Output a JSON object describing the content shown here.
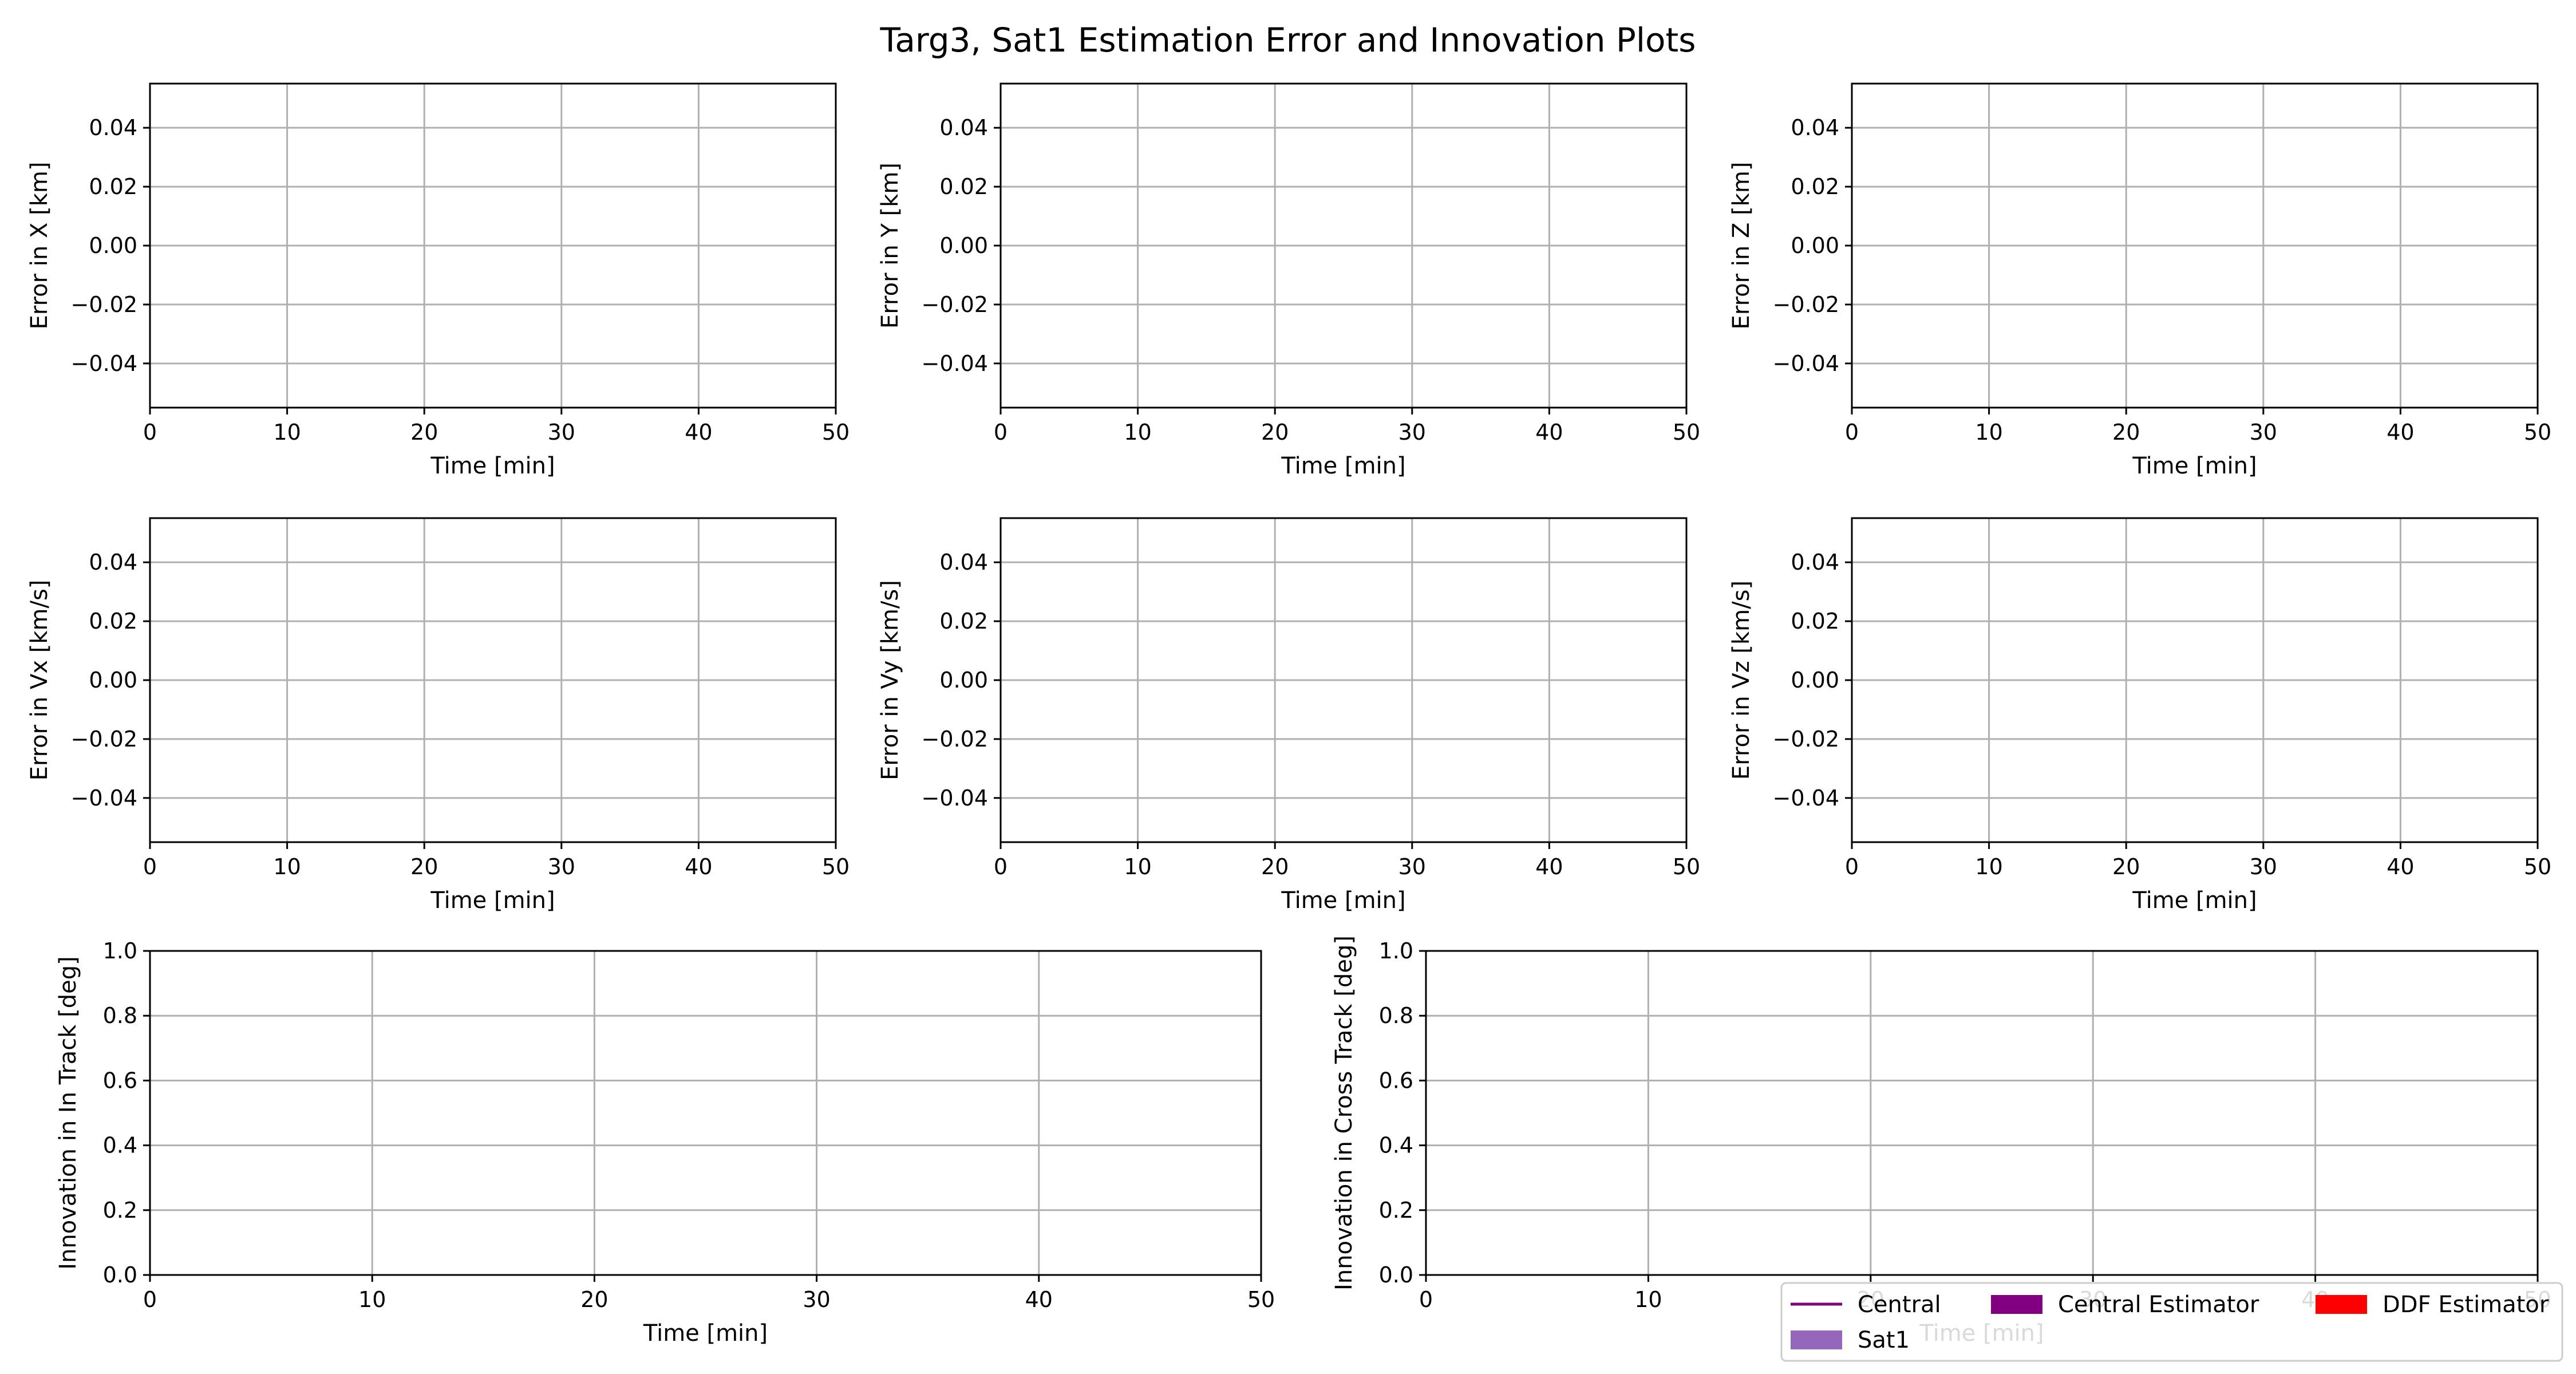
{
  "chart_data": {
    "title": "Targ3, Sat1 Estimation Error and Innovation Plots",
    "subplots": [
      {
        "type": "line",
        "xlabel": "Time [min]",
        "ylabel": "Error in X [km]",
        "xlim": [
          0,
          50
        ],
        "ylim": [
          -0.055,
          0.055
        ],
        "xticks": [
          0,
          10,
          20,
          30,
          40,
          50
        ],
        "xtick_labels": [
          "0",
          "10",
          "20",
          "30",
          "40",
          "50"
        ],
        "yticks": [
          -0.04,
          -0.02,
          0,
          0.02,
          0.04
        ],
        "ytick_labels": [
          "−0.04",
          "−0.02",
          "0.00",
          "0.02",
          "0.04"
        ],
        "grid": true,
        "series": []
      },
      {
        "type": "line",
        "xlabel": "Time [min]",
        "ylabel": "Error in Y [km]",
        "xlim": [
          0,
          50
        ],
        "ylim": [
          -0.055,
          0.055
        ],
        "xticks": [
          0,
          10,
          20,
          30,
          40,
          50
        ],
        "xtick_labels": [
          "0",
          "10",
          "20",
          "30",
          "40",
          "50"
        ],
        "yticks": [
          -0.04,
          -0.02,
          0,
          0.02,
          0.04
        ],
        "ytick_labels": [
          "−0.04",
          "−0.02",
          "0.00",
          "0.02",
          "0.04"
        ],
        "grid": true,
        "series": []
      },
      {
        "type": "line",
        "xlabel": "Time [min]",
        "ylabel": "Error in Z [km]",
        "xlim": [
          0,
          50
        ],
        "ylim": [
          -0.055,
          0.055
        ],
        "xticks": [
          0,
          10,
          20,
          30,
          40,
          50
        ],
        "xtick_labels": [
          "0",
          "10",
          "20",
          "30",
          "40",
          "50"
        ],
        "yticks": [
          -0.04,
          -0.02,
          0,
          0.02,
          0.04
        ],
        "ytick_labels": [
          "−0.04",
          "−0.02",
          "0.00",
          "0.02",
          "0.04"
        ],
        "grid": true,
        "series": []
      },
      {
        "type": "line",
        "xlabel": "Time [min]",
        "ylabel": "Error in Vx [km/s]",
        "xlim": [
          0,
          50
        ],
        "ylim": [
          -0.055,
          0.055
        ],
        "xticks": [
          0,
          10,
          20,
          30,
          40,
          50
        ],
        "xtick_labels": [
          "0",
          "10",
          "20",
          "30",
          "40",
          "50"
        ],
        "yticks": [
          -0.04,
          -0.02,
          0,
          0.02,
          0.04
        ],
        "ytick_labels": [
          "−0.04",
          "−0.02",
          "0.00",
          "0.02",
          "0.04"
        ],
        "grid": true,
        "series": []
      },
      {
        "type": "line",
        "xlabel": "Time [min]",
        "ylabel": "Error in Vy [km/s]",
        "xlim": [
          0,
          50
        ],
        "ylim": [
          -0.055,
          0.055
        ],
        "xticks": [
          0,
          10,
          20,
          30,
          40,
          50
        ],
        "xtick_labels": [
          "0",
          "10",
          "20",
          "30",
          "40",
          "50"
        ],
        "yticks": [
          -0.04,
          -0.02,
          0,
          0.02,
          0.04
        ],
        "ytick_labels": [
          "−0.04",
          "−0.02",
          "0.00",
          "0.02",
          "0.04"
        ],
        "grid": true,
        "series": []
      },
      {
        "type": "line",
        "xlabel": "Time [min]",
        "ylabel": "Error in Vz [km/s]",
        "xlim": [
          0,
          50
        ],
        "ylim": [
          -0.055,
          0.055
        ],
        "xticks": [
          0,
          10,
          20,
          30,
          40,
          50
        ],
        "xtick_labels": [
          "0",
          "10",
          "20",
          "30",
          "40",
          "50"
        ],
        "yticks": [
          -0.04,
          -0.02,
          0,
          0.02,
          0.04
        ],
        "ytick_labels": [
          "−0.04",
          "−0.02",
          "0.00",
          "0.02",
          "0.04"
        ],
        "grid": true,
        "series": []
      },
      {
        "type": "line",
        "xlabel": "Time [min]",
        "ylabel": "Innovation in In Track [deg]",
        "xlim": [
          0,
          50
        ],
        "ylim": [
          0,
          1
        ],
        "xticks": [
          0,
          10,
          20,
          30,
          40,
          50
        ],
        "xtick_labels": [
          "0",
          "10",
          "20",
          "30",
          "40",
          "50"
        ],
        "yticks": [
          0,
          0.2,
          0.4,
          0.6,
          0.8,
          1.0
        ],
        "ytick_labels": [
          "0.0",
          "0.2",
          "0.4",
          "0.6",
          "0.8",
          "1.0"
        ],
        "grid": true,
        "series": []
      },
      {
        "type": "line",
        "xlabel": "Time [min]",
        "ylabel": "Innovation in Cross Track [deg]",
        "xlim": [
          0,
          50
        ],
        "ylim": [
          0,
          1
        ],
        "xticks": [
          0,
          10,
          20,
          30,
          40,
          50
        ],
        "xtick_labels": [
          "0",
          "10",
          "20",
          "30",
          "40",
          "50"
        ],
        "yticks": [
          0,
          0.2,
          0.4,
          0.6,
          0.8,
          1.0
        ],
        "ytick_labels": [
          "0.0",
          "0.2",
          "0.4",
          "0.6",
          "0.8",
          "1.0"
        ],
        "grid": true,
        "series": []
      }
    ],
    "legend": {
      "placement": "bottom-right",
      "entries": [
        {
          "label": "Central",
          "kind": "line",
          "color": "#800080"
        },
        {
          "label": "Central Estimator",
          "kind": "patch",
          "color": "#800080"
        },
        {
          "label": "DDF Estimator",
          "kind": "patch",
          "color": "#ff0000"
        },
        {
          "label": "Sat1",
          "kind": "patch",
          "color": "#9467bd"
        }
      ]
    }
  }
}
